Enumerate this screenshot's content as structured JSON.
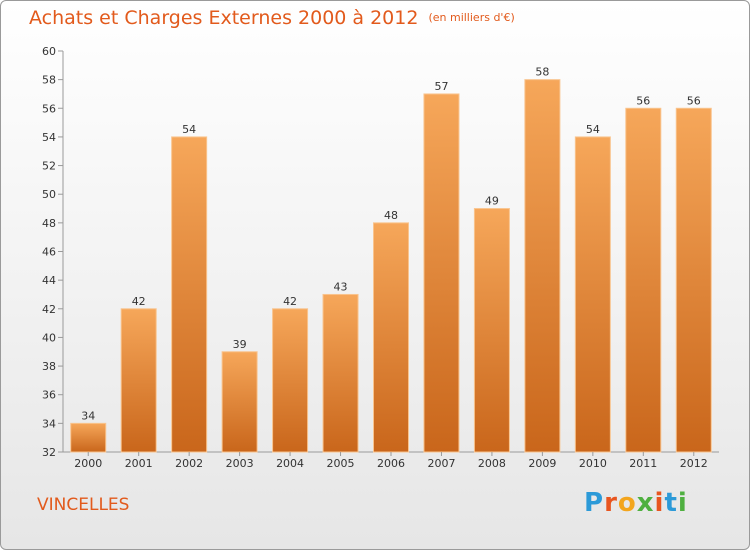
{
  "header": {
    "title": "Achats et Charges Externes 2000 à 2012",
    "subtitle": "(en milliers d'€)"
  },
  "commune": "VINCELLES",
  "logo": {
    "text": "Proxiti",
    "letters": [
      "P",
      "r",
      "o",
      "x",
      "i",
      "t",
      "i"
    ]
  },
  "colors": {
    "accent": "#e25a1c",
    "bar_top": "#f6a75a",
    "bar_bottom": "#c9661b",
    "bar_edge": "#f9c48e"
  },
  "chart_data": {
    "type": "bar",
    "title": "Achats et Charges Externes 2000 à 2012",
    "categories": [
      "2000",
      "2001",
      "2002",
      "2003",
      "2004",
      "2005",
      "2006",
      "2007",
      "2008",
      "2009",
      "2010",
      "2011",
      "2012"
    ],
    "values": [
      34,
      42,
      54,
      39,
      42,
      43,
      48,
      57,
      49,
      58,
      54,
      56,
      56
    ],
    "data_labels": [
      "34",
      "42",
      "54",
      "39",
      "42",
      "43",
      "48",
      "57",
      "49",
      "58",
      "54",
      "56",
      "56"
    ],
    "yticks": [
      "32",
      "34",
      "36",
      "38",
      "40",
      "42",
      "44",
      "46",
      "48",
      "50",
      "52",
      "54",
      "56",
      "58",
      "60"
    ],
    "ylim": [
      32,
      60
    ],
    "xlabel": "",
    "ylabel": "",
    "grid": false
  }
}
